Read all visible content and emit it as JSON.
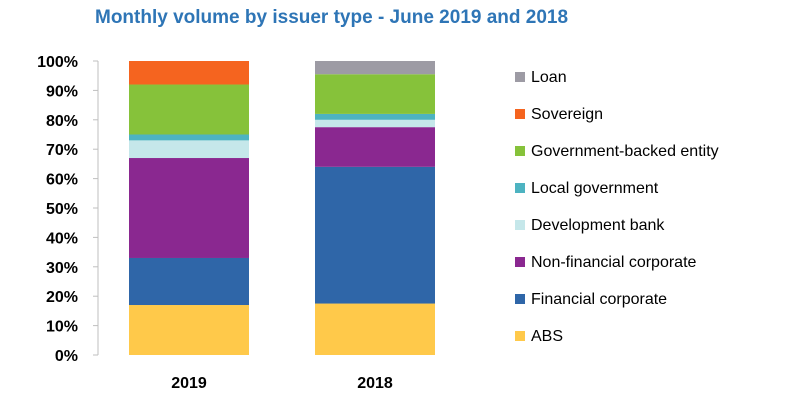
{
  "chart_data": {
    "type": "bar",
    "stacked": true,
    "title": "Monthly volume by issuer type - June 2019 and 2018",
    "categories": [
      "2019",
      "2018"
    ],
    "ylim": [
      0,
      100
    ],
    "yticks": [
      "0%",
      "10%",
      "20%",
      "30%",
      "40%",
      "50%",
      "60%",
      "70%",
      "80%",
      "90%",
      "100%"
    ],
    "ytick_values": [
      0,
      10,
      20,
      30,
      40,
      50,
      60,
      70,
      80,
      90,
      100
    ],
    "grid": false,
    "legend_position": "right",
    "series": [
      {
        "name": "ABS",
        "color": "#ffc94a",
        "values": [
          17,
          17.5
        ]
      },
      {
        "name": "Financial corporate",
        "color": "#2f66a8",
        "values": [
          16,
          46.5
        ]
      },
      {
        "name": "Non-financial corporate",
        "color": "#8a2890",
        "values": [
          34,
          13.5
        ]
      },
      {
        "name": "Development bank",
        "color": "#c5e7ea",
        "values": [
          6,
          2.5
        ]
      },
      {
        "name": "Local government",
        "color": "#4db3c1",
        "values": [
          2,
          2
        ]
      },
      {
        "name": "Government-backed entity",
        "color": "#86c23a",
        "values": [
          17,
          13.5
        ]
      },
      {
        "name": "Sovereign",
        "color": "#f5641f",
        "values": [
          8,
          0
        ]
      },
      {
        "name": "Loan",
        "color": "#9d9ba4",
        "values": [
          0,
          4.5
        ]
      }
    ]
  }
}
